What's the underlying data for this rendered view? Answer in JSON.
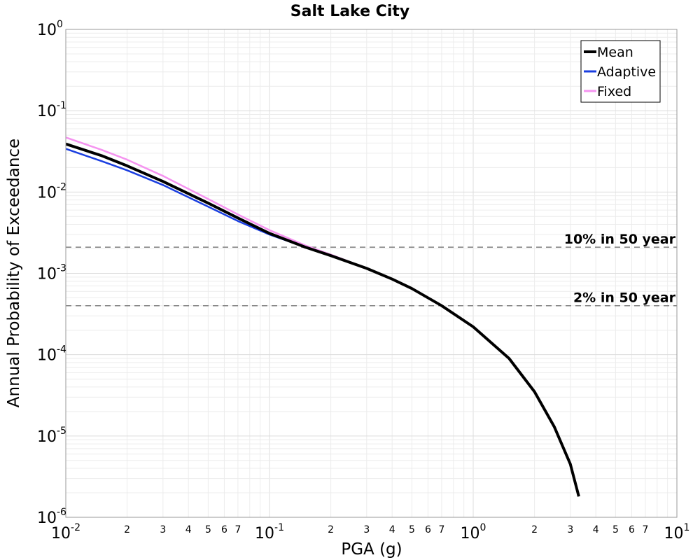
{
  "chart_data": {
    "type": "line",
    "title": "Salt Lake City",
    "xlabel": "PGA (g)",
    "ylabel": "Annual Probability of Exceedance",
    "x_scale": "log",
    "y_scale": "log",
    "xlim": [
      0.01,
      10
    ],
    "ylim": [
      1e-06,
      1
    ],
    "grid": true,
    "legend_position": "top-right",
    "x_major_ticks": [
      {
        "value": 0.01,
        "base": "10",
        "exp": "-2"
      },
      {
        "value": 0.1,
        "base": "10",
        "exp": "-1"
      },
      {
        "value": 1,
        "base": "10",
        "exp": "0"
      },
      {
        "value": 10,
        "base": "10",
        "exp": "1"
      }
    ],
    "x_minor_labels": [
      {
        "value": 0.02,
        "label": "2"
      },
      {
        "value": 0.03,
        "label": "3"
      },
      {
        "value": 0.04,
        "label": "4"
      },
      {
        "value": 0.05,
        "label": "5"
      },
      {
        "value": 0.06,
        "label": "6"
      },
      {
        "value": 0.07,
        "label": "7"
      },
      {
        "value": 0.2,
        "label": "2"
      },
      {
        "value": 0.3,
        "label": "3"
      },
      {
        "value": 0.4,
        "label": "4"
      },
      {
        "value": 0.5,
        "label": "5"
      },
      {
        "value": 0.6,
        "label": "6"
      },
      {
        "value": 0.7,
        "label": "7"
      },
      {
        "value": 2,
        "label": "2"
      },
      {
        "value": 3,
        "label": "3"
      },
      {
        "value": 4,
        "label": "4"
      },
      {
        "value": 5,
        "label": "5"
      },
      {
        "value": 6,
        "label": "6"
      },
      {
        "value": 7,
        "label": "7"
      }
    ],
    "y_major_ticks": [
      {
        "value": 1,
        "base": "10",
        "exp": "0"
      },
      {
        "value": 0.1,
        "base": "10",
        "exp": "-1"
      },
      {
        "value": 0.01,
        "base": "10",
        "exp": "-2"
      },
      {
        "value": 0.001,
        "base": "10",
        "exp": "-3"
      },
      {
        "value": 0.0001,
        "base": "10",
        "exp": "-4"
      },
      {
        "value": 1e-05,
        "base": "10",
        "exp": "-5"
      },
      {
        "value": 1e-06,
        "base": "10",
        "exp": "-6"
      }
    ],
    "series": [
      {
        "name": "Mean",
        "color": "#000000",
        "x": [
          0.01,
          0.015,
          0.02,
          0.03,
          0.05,
          0.07,
          0.1,
          0.15,
          0.2,
          0.3,
          0.4,
          0.5,
          0.7,
          1.0,
          1.5,
          2.0,
          2.5,
          3.0,
          3.3
        ],
        "y": [
          0.039,
          0.028,
          0.021,
          0.0135,
          0.0073,
          0.0048,
          0.0031,
          0.0021,
          0.00165,
          0.00115,
          0.00085,
          0.00065,
          0.0004,
          0.00022,
          9e-05,
          3.5e-05,
          1.3e-05,
          4.5e-06,
          1.8e-06
        ]
      },
      {
        "name": "Adaptive",
        "color": "#1a3ee0",
        "x": [
          0.01,
          0.015,
          0.02,
          0.03,
          0.05,
          0.07,
          0.1,
          0.15,
          0.2,
          0.25,
          0.3
        ],
        "y": [
          0.034,
          0.024,
          0.0185,
          0.0122,
          0.0066,
          0.0044,
          0.003,
          0.0021,
          0.00165,
          0.00135,
          0.00115
        ]
      },
      {
        "name": "Fixed",
        "color": "#f593f0",
        "x": [
          0.01,
          0.015,
          0.02,
          0.03,
          0.05,
          0.07,
          0.1,
          0.15,
          0.2,
          0.25,
          0.3
        ],
        "y": [
          0.047,
          0.033,
          0.025,
          0.0158,
          0.0082,
          0.0053,
          0.0034,
          0.0022,
          0.0017,
          0.00137,
          0.00116
        ]
      }
    ],
    "reference_lines": [
      {
        "label": "10% in 50 year",
        "y": 0.0021,
        "color": "#808080"
      },
      {
        "label": "2% in 50 year",
        "y": 0.0004,
        "color": "#808080"
      }
    ]
  }
}
